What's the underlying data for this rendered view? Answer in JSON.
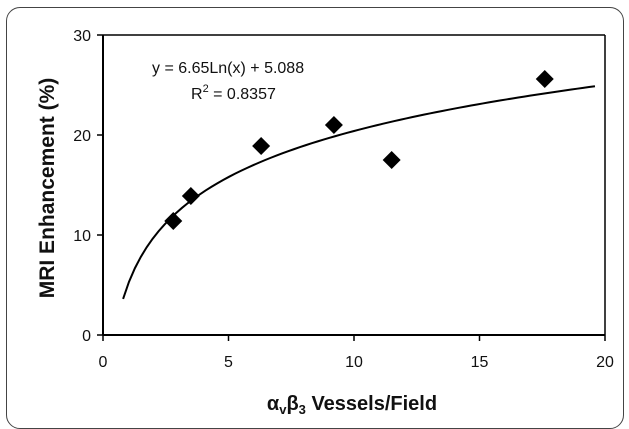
{
  "chart_data": {
    "type": "scatter",
    "title": "",
    "xlabel": {
      "alpha": "α",
      "alpha_sub": "v",
      "beta": "β",
      "beta_sub": "3",
      "rest": " Vessels/Field"
    },
    "ylabel": "MRI Enhancement (%)",
    "xlim": [
      0,
      20
    ],
    "ylim": [
      0,
      30
    ],
    "x_ticks": [
      "0",
      "5",
      "10",
      "15",
      "20"
    ],
    "y_ticks": [
      "0",
      "10",
      "20",
      "30"
    ],
    "points": [
      {
        "x": 2.8,
        "y": 11.4
      },
      {
        "x": 3.5,
        "y": 13.9
      },
      {
        "x": 6.3,
        "y": 18.9
      },
      {
        "x": 9.2,
        "y": 21.0
      },
      {
        "x": 11.5,
        "y": 17.5
      },
      {
        "x": 17.6,
        "y": 25.6
      }
    ],
    "trendline": {
      "type": "logarithmic",
      "a": 6.65,
      "b": 5.088,
      "x_range": [
        0.8,
        19.6
      ],
      "equation": "y = 6.65Ln(x) + 5.088",
      "r2_prefix": "R",
      "r2_sup": "2",
      "r2_suffix": " = 0.8357"
    },
    "marker": "diamond",
    "marker_color": "#000000",
    "line_color": "#000000",
    "grid": false
  }
}
